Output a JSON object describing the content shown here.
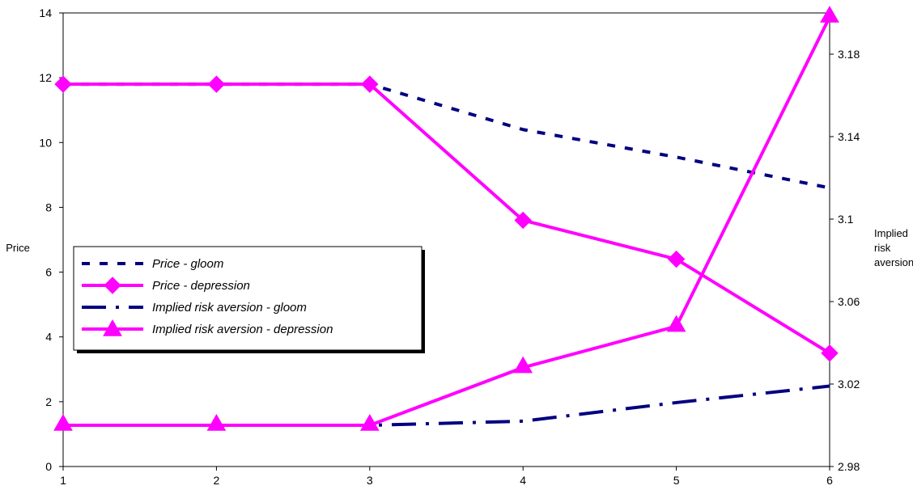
{
  "chart_data": {
    "type": "line",
    "x": [
      1,
      2,
      3,
      4,
      5,
      6
    ],
    "x_tick_labels": [
      "1",
      "2",
      "3",
      "4",
      "5",
      "6"
    ],
    "xlim": [
      1,
      6
    ],
    "y_left": {
      "label": "Price",
      "ylim": [
        0,
        14
      ],
      "ticks": [
        0,
        2,
        4,
        6,
        8,
        10,
        12,
        14
      ],
      "tick_labels": [
        "0",
        "2",
        "4",
        "6",
        "8",
        "10",
        "12",
        "14"
      ]
    },
    "y_right": {
      "label_lines": [
        "Implied",
        "risk",
        "aversion"
      ],
      "ylim": [
        2.98,
        3.2
      ],
      "ticks": [
        2.98,
        3.02,
        3.06,
        3.1,
        3.14,
        3.18
      ],
      "tick_labels": [
        "2.98",
        "3.02",
        "3.06",
        "3.1",
        "3.14",
        "3.18"
      ]
    },
    "grid": false,
    "legend_position": "left",
    "series": [
      {
        "name": "Price - gloom",
        "axis": "left",
        "color": "#000080",
        "style": "dashed",
        "marker": "none",
        "values": [
          11.8,
          11.8,
          11.8,
          10.4,
          9.55,
          8.6
        ]
      },
      {
        "name": "Price - depression",
        "axis": "left",
        "color": "#ff00ff",
        "style": "solid",
        "marker": "diamond",
        "values": [
          11.8,
          11.8,
          11.8,
          7.6,
          6.4,
          3.5
        ]
      },
      {
        "name": "Implied risk aversion - gloom",
        "axis": "right",
        "color": "#000080",
        "style": "dash-dot",
        "marker": "none",
        "values": [
          3.0,
          3.0,
          3.0,
          3.002,
          3.011,
          3.019
        ]
      },
      {
        "name": "Implied risk aversion - depression",
        "axis": "right",
        "color": "#ff00ff",
        "style": "solid",
        "marker": "triangle",
        "values": [
          3.0,
          3.0,
          3.0,
          3.028,
          3.048,
          3.198
        ]
      }
    ]
  }
}
